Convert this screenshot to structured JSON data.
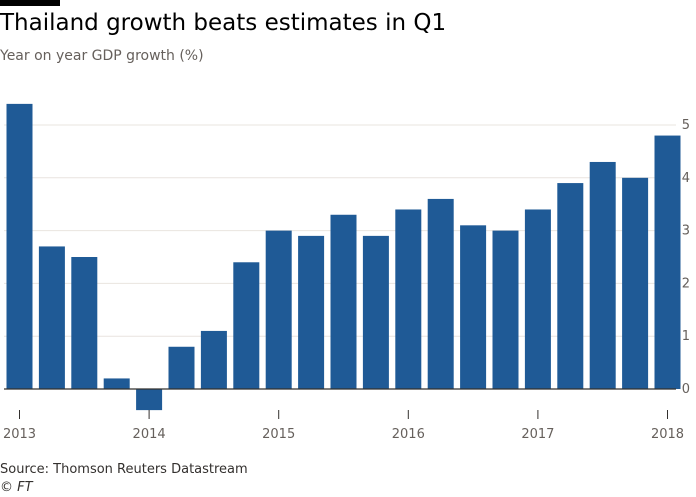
{
  "header": {
    "title": "Thailand growth beats estimates in Q1",
    "subtitle": "Year on year GDP growth (%)"
  },
  "footer": {
    "source": "Source: Thomson Reuters Datastream",
    "credit": "© FT"
  },
  "colors": {
    "bar": "#1f5a96",
    "grid": "#e9e4df",
    "zero_line": "#33302e",
    "axis_text": "#66605c"
  },
  "chart_data": {
    "type": "bar",
    "title": "Thailand growth beats estimates in Q1",
    "ylabel": "Year on year GDP growth (%)",
    "ylim": [
      -0.4,
      5.5
    ],
    "y_ticks": [
      0,
      1,
      2,
      3,
      4,
      5
    ],
    "y_axis_side": "right",
    "grid": true,
    "categories": [
      "2013 Q1",
      "2013 Q2",
      "2013 Q3",
      "2013 Q4",
      "2014 Q1",
      "2014 Q2",
      "2014 Q3",
      "2014 Q4",
      "2015 Q1",
      "2015 Q2",
      "2015 Q3",
      "2015 Q4",
      "2016 Q1",
      "2016 Q2",
      "2016 Q3",
      "2016 Q4",
      "2017 Q1",
      "2017 Q2",
      "2017 Q3",
      "2017 Q4",
      "2018 Q1"
    ],
    "values": [
      5.4,
      2.7,
      2.5,
      0.2,
      -0.4,
      0.8,
      1.1,
      2.4,
      3.0,
      2.9,
      3.3,
      2.9,
      3.4,
      3.6,
      3.1,
      3.0,
      3.4,
      3.9,
      4.3,
      4.0,
      4.8
    ],
    "x_tick_labels": [
      "2013",
      "2014",
      "2015",
      "2016",
      "2017",
      "2018"
    ]
  }
}
